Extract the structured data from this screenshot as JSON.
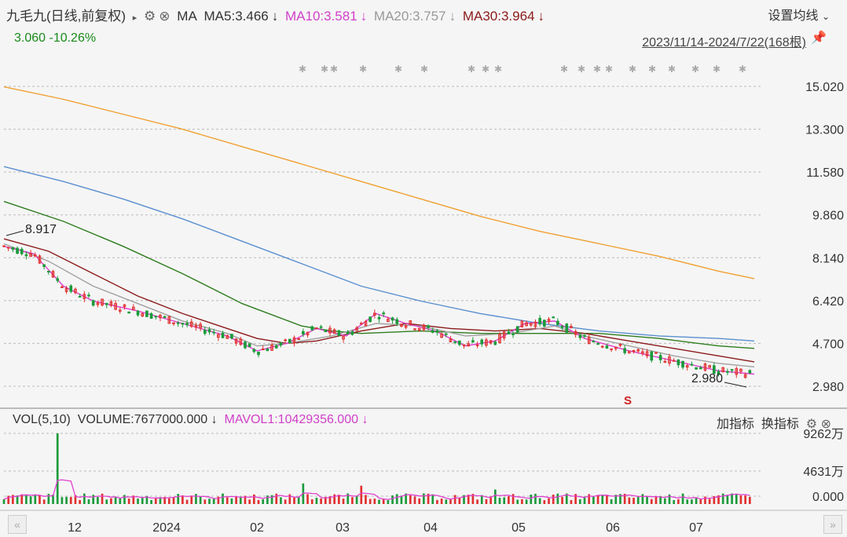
{
  "header": {
    "stock_title": "九毛九(日线,前复权)",
    "arrow_icon": "triangle-right-icon",
    "gear_icon": "gear-icon",
    "close_icon": "close-icon",
    "ma_label": "MA",
    "ma5": "MA5:3.466",
    "ma10": "MA10:3.581",
    "ma20": "MA20:3.757",
    "ma30": "MA30:3.964",
    "down_arrow": "↓",
    "price_change": "3.060 -10.26%",
    "settings_label": "设置均线",
    "chevron_icon": "chevron-down-icon",
    "date_range": "2023/11/14-2024/7/22(168根)",
    "pin_icon": "pin-icon"
  },
  "volume_header": {
    "vol_label": "VOL(5,10)",
    "volume": "VOLUME:7677000.000",
    "mavol1": "MAVOL1:10429356.000",
    "down_arrow": "↓",
    "add_indicator": "加指标",
    "switch_indicator": "换指标"
  },
  "colors": {
    "ma5": "#e040d0",
    "ma10": "#d050d0",
    "ma20": "#a0a0a0",
    "ma30": "#8b1a1a",
    "ma60": "#2e7d1e",
    "ma120": "#5a8fd0",
    "ma250": "#f0a030",
    "up": "#e03030",
    "down": "#1a9a3a"
  },
  "chart_data": [
    {
      "type": "candlestick",
      "y_ticks": [
        "15.020",
        "13.300",
        "11.580",
        "9.860",
        "8.140",
        "6.420",
        "4.700",
        "2.980"
      ],
      "ylim": [
        2.98,
        15.02
      ],
      "x_ticks": [
        "12",
        "2024",
        "02",
        "03",
        "04",
        "05",
        "06",
        "07"
      ],
      "annotations": {
        "high": "8.917",
        "low": "2.980",
        "signal": "S"
      },
      "series": [
        {
          "name": "MA5",
          "color": "#e040d0"
        },
        {
          "name": "MA10",
          "color": "#d050d0"
        },
        {
          "name": "MA20",
          "color": "#a0a0a0"
        },
        {
          "name": "MA30",
          "color": "#8b1a1a"
        }
      ],
      "ma250": [
        [
          0,
          15.0
        ],
        [
          20,
          14.5
        ],
        [
          40,
          13.9
        ],
        [
          60,
          13.3
        ],
        [
          80,
          12.6
        ],
        [
          100,
          11.9
        ],
        [
          120,
          11.2
        ],
        [
          140,
          10.5
        ],
        [
          160,
          9.8
        ],
        [
          180,
          9.2
        ],
        [
          200,
          8.7
        ],
        [
          220,
          8.2
        ],
        [
          240,
          7.6
        ],
        [
          252,
          7.3
        ]
      ],
      "ma120": [
        [
          0,
          11.8
        ],
        [
          20,
          11.2
        ],
        [
          40,
          10.5
        ],
        [
          60,
          9.7
        ],
        [
          80,
          8.8
        ],
        [
          100,
          7.9
        ],
        [
          120,
          7.0
        ],
        [
          140,
          6.4
        ],
        [
          160,
          5.9
        ],
        [
          180,
          5.5
        ],
        [
          200,
          5.2
        ],
        [
          220,
          5.0
        ],
        [
          240,
          4.9
        ],
        [
          252,
          4.8
        ]
      ],
      "ma60": [
        [
          0,
          10.4
        ],
        [
          20,
          9.6
        ],
        [
          40,
          8.6
        ],
        [
          60,
          7.5
        ],
        [
          80,
          6.3
        ],
        [
          100,
          5.4
        ],
        [
          110,
          5.2
        ],
        [
          120,
          5.1
        ],
        [
          140,
          5.2
        ],
        [
          160,
          5.1
        ],
        [
          180,
          5.1
        ],
        [
          200,
          5.1
        ],
        [
          220,
          4.9
        ],
        [
          240,
          4.6
        ],
        [
          252,
          4.5
        ]
      ],
      "ma30": [
        [
          0,
          8.9
        ],
        [
          15,
          8.4
        ],
        [
          30,
          7.5
        ],
        [
          45,
          6.6
        ],
        [
          60,
          5.9
        ],
        [
          75,
          5.3
        ],
        [
          85,
          4.9
        ],
        [
          95,
          4.7
        ],
        [
          105,
          4.8
        ],
        [
          120,
          5.2
        ],
        [
          135,
          5.5
        ],
        [
          150,
          5.3
        ],
        [
          165,
          5.2
        ],
        [
          180,
          5.3
        ],
        [
          195,
          5.1
        ],
        [
          210,
          4.8
        ],
        [
          225,
          4.5
        ],
        [
          240,
          4.2
        ],
        [
          252,
          3.96
        ]
      ],
      "ma20": [
        [
          0,
          8.7
        ],
        [
          15,
          8.0
        ],
        [
          30,
          7.0
        ],
        [
          45,
          6.3
        ],
        [
          60,
          5.6
        ],
        [
          75,
          5.1
        ],
        [
          85,
          4.6
        ],
        [
          95,
          4.7
        ],
        [
          110,
          5.0
        ],
        [
          125,
          5.5
        ],
        [
          140,
          5.4
        ],
        [
          155,
          5.0
        ],
        [
          170,
          5.1
        ],
        [
          185,
          5.4
        ],
        [
          195,
          5.0
        ],
        [
          210,
          4.6
        ],
        [
          225,
          4.2
        ],
        [
          240,
          3.9
        ],
        [
          252,
          3.76
        ]
      ],
      "ma5": [
        [
          0,
          8.6
        ],
        [
          10,
          8.3
        ],
        [
          20,
          7.0
        ],
        [
          30,
          6.4
        ],
        [
          45,
          6.0
        ],
        [
          60,
          5.5
        ],
        [
          75,
          5.0
        ],
        [
          85,
          4.4
        ],
        [
          95,
          4.7
        ],
        [
          105,
          5.3
        ],
        [
          115,
          5.0
        ],
        [
          125,
          5.9
        ],
        [
          135,
          5.5
        ],
        [
          145,
          5.2
        ],
        [
          155,
          4.6
        ],
        [
          165,
          4.8
        ],
        [
          175,
          5.5
        ],
        [
          185,
          5.6
        ],
        [
          195,
          4.9
        ],
        [
          210,
          4.4
        ],
        [
          225,
          4.0
        ],
        [
          240,
          3.6
        ],
        [
          252,
          3.47
        ]
      ]
    },
    {
      "type": "bar",
      "y_ticks": [
        "9262万",
        "4631万",
        "0.000"
      ],
      "ylim": [
        0,
        9262
      ],
      "series": [
        {
          "name": "MAVOL1",
          "color": "#e040d0"
        }
      ]
    }
  ]
}
